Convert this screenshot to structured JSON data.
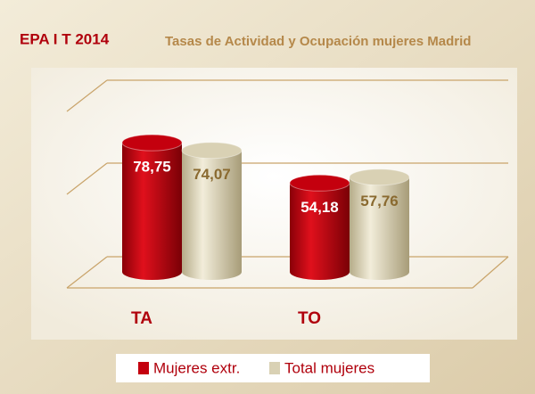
{
  "chart_data": {
    "type": "bar",
    "title": "EPA I T 2014",
    "subtitle": "Tasas de Actividad y Ocupación  mujeres Madrid",
    "categories": [
      "TA",
      "TO"
    ],
    "series": [
      {
        "name": "Mujeres extr.",
        "color": "#c4000e",
        "values": [
          78.75,
          54.18
        ],
        "value_labels": [
          "78,75",
          "54,18"
        ]
      },
      {
        "name": "Total mujeres",
        "color": "#d9d1b4",
        "values": [
          74.07,
          57.76
        ],
        "value_labels": [
          "74,07",
          "57,76"
        ]
      }
    ],
    "ylim": [
      0,
      100
    ],
    "legend": "bottom"
  }
}
